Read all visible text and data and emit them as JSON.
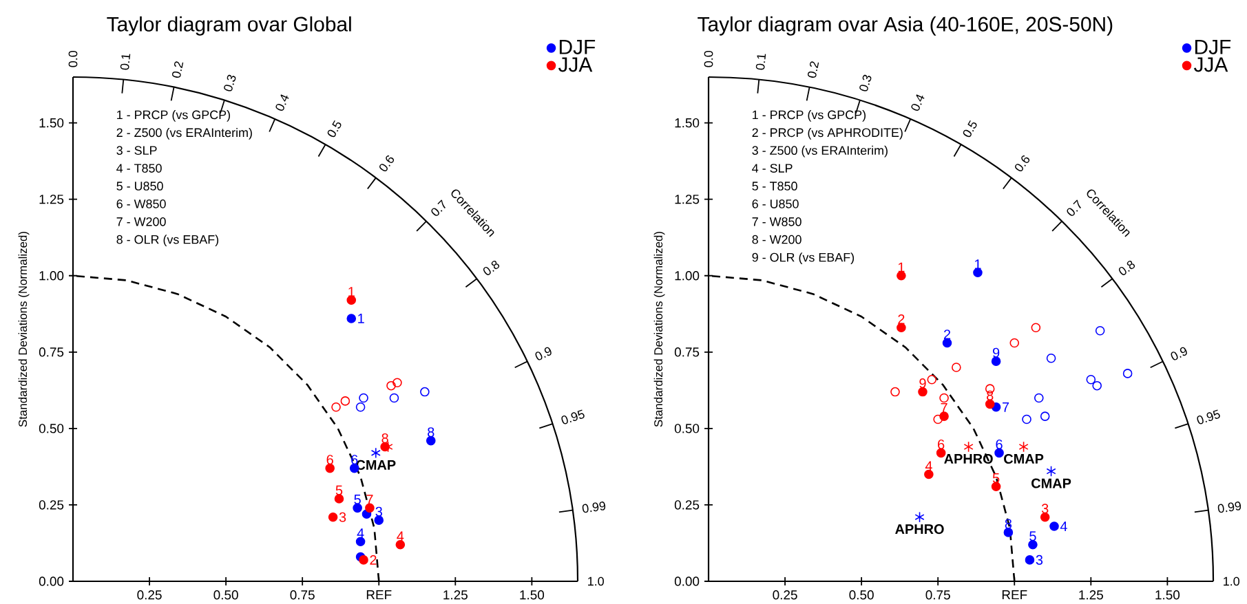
{
  "chart_data": [
    {
      "type": "scatter",
      "title": "Taylor diagram ovar Global",
      "ylabel": "Standardized Deviations (Normalized)",
      "x2label": "Correlation",
      "xlim": [
        0,
        1.65
      ],
      "ylim": [
        0,
        1.65
      ],
      "xticks": [
        0.25,
        {
          "value": 0.5,
          "label": "0.50"
        },
        0.75,
        {
          "value": 1,
          "label": "REF"
        },
        1.25,
        {
          "value": 1.5,
          "label": "1.50"
        }
      ],
      "yticks": [
        {
          "value": 0,
          "label": "0.00"
        },
        0.25,
        {
          "value": 0.5,
          "label": "0.50"
        },
        0.75,
        {
          "value": 1,
          "label": "1.00"
        },
        1.25,
        {
          "value": 1.5,
          "label": "1.50"
        }
      ],
      "legend": "top right",
      "series": [
        {
          "type": "line",
          "color": "#000000",
          "line_style": "dashed",
          "marker": "none",
          "x": [
            1,
            0.985,
            0.94,
            0.866,
            0.766,
            0.643,
            0.5,
            0.342,
            0.174,
            0
          ],
          "values": [
            0,
            0.174,
            0.342,
            0.5,
            0.643,
            0.766,
            0.866,
            0.94,
            0.985,
            1
          ]
        },
        {
          "name": "DJF",
          "color": "#0000ff",
          "marker": "circle",
          "x": [
            0.91,
            0.94,
            1.0,
            0.94,
            0.93,
            0.92,
            0.96,
            1.17
          ],
          "values": [
            0.86,
            0.08,
            0.2,
            0.13,
            0.24,
            0.37,
            0.22,
            0.46
          ]
        },
        {
          "name": "JJA",
          "color": "#ff0000",
          "marker": "circle",
          "x": [
            0.91,
            0.95,
            0.85,
            1.07,
            0.87,
            0.84,
            0.97,
            1.02
          ],
          "values": [
            0.92,
            0.07,
            0.21,
            0.12,
            0.27,
            0.37,
            0.24,
            0.44
          ]
        },
        {
          "color": "#0000ff",
          "marker": "circle",
          "x": [
            0.95,
            0.94,
            1.05,
            1.15
          ],
          "values": [
            0.6,
            0.57,
            0.6,
            0.62
          ]
        },
        {
          "color": "#ff0000",
          "marker": "circle",
          "x": [
            0.86,
            0.89,
            1.04,
            1.06
          ],
          "values": [
            0.57,
            0.59,
            0.64,
            0.65
          ]
        },
        {
          "color": "#0000ff",
          "marker": "cross",
          "x": [
            0.99
          ],
          "values": [
            0.42
          ]
        },
        {
          "color": "#ff0000",
          "marker": "cross",
          "x": [
            1.03
          ],
          "values": [
            0.44
          ]
        }
      ],
      "annotations": [
        "1 - PRCP (vs GPCP)",
        "2 - Z500 (vs ERAInterim)",
        "3 - SLP",
        "4 - T850",
        "5 - U850",
        "6 - W850",
        "7 - W200",
        "8 - OLR (vs EBAF)",
        "0.0",
        "0.1",
        "0.2",
        "0.3",
        "0.4",
        "0.5",
        "0.6",
        "0.7",
        "0.8",
        "0.9",
        "0.95",
        "0.99",
        "1.0",
        {
          "text": "CMAP",
          "x": 0.99,
          "y": 0.42
        },
        {
          "text": "1",
          "x": 0.91,
          "y": 0.86
        },
        {
          "text": "3",
          "x": 1.0,
          "y": 0.2
        },
        {
          "text": "4",
          "x": 0.94,
          "y": 0.13
        },
        {
          "text": "5",
          "x": 0.93,
          "y": 0.24
        },
        {
          "text": "6",
          "x": 0.92,
          "y": 0.37
        },
        {
          "text": "8",
          "x": 1.17,
          "y": 0.46
        },
        {
          "text": "1",
          "x": 0.91,
          "y": 0.92
        },
        {
          "text": "2",
          "x": 0.95,
          "y": 0.07
        },
        {
          "text": "3",
          "x": 0.85,
          "y": 0.21
        },
        {
          "text": "4",
          "x": 1.07,
          "y": 0.12
        },
        {
          "text": "5",
          "x": 0.87,
          "y": 0.27
        },
        {
          "text": "6",
          "x": 0.84,
          "y": 0.37
        },
        {
          "text": "7",
          "x": 0.97,
          "y": 0.24
        },
        {
          "text": "8",
          "x": 1.02,
          "y": 0.44
        }
      ]
    },
    {
      "type": "scatter",
      "title": "Taylor diagram ovar Asia (40-160E, 20S-50N)",
      "ylabel": "Standardized Deviations (Normalized)",
      "x2label": "Correlation",
      "xlim": [
        0,
        1.65
      ],
      "ylim": [
        0,
        1.65
      ],
      "xticks": [
        0.25,
        {
          "value": 0.5,
          "label": "0.50"
        },
        0.75,
        {
          "value": 1,
          "label": "REF"
        },
        1.25,
        {
          "value": 1.5,
          "label": "1.50"
        }
      ],
      "yticks": [
        {
          "value": 0,
          "label": "0.00"
        },
        0.25,
        {
          "value": 0.5,
          "label": "0.50"
        },
        0.75,
        {
          "value": 1,
          "label": "1.00"
        },
        1.25,
        {
          "value": 1.5,
          "label": "1.50"
        }
      ],
      "legend": "top right",
      "series": [
        {
          "type": "line",
          "color": "#000000",
          "line_style": "dashed",
          "marker": "none",
          "x": [
            1,
            0.985,
            0.94,
            0.866,
            0.766,
            0.643,
            0.5,
            0.342,
            0.174,
            0
          ],
          "values": [
            0,
            0.174,
            0.342,
            0.5,
            0.643,
            0.766,
            0.866,
            0.94,
            0.985,
            1
          ]
        },
        {
          "name": "DJF",
          "color": "#0000ff",
          "marker": "circle",
          "x": [
            0.88,
            0.78,
            1.05,
            1.13,
            1.06,
            0.95,
            0.94,
            0.98,
            0.94
          ],
          "values": [
            1.01,
            0.78,
            0.07,
            0.18,
            0.12,
            0.42,
            0.57,
            0.16,
            0.72
          ]
        },
        {
          "name": "JJA",
          "color": "#ff0000",
          "marker": "circle",
          "x": [
            0.63,
            0.63,
            1.1,
            0.72,
            0.94,
            0.76,
            0.77,
            0.92,
            0.7
          ],
          "values": [
            1.0,
            0.83,
            0.21,
            0.35,
            0.31,
            0.42,
            0.54,
            0.58,
            0.62
          ]
        },
        {
          "color": "#0000ff",
          "marker": "circle",
          "x": [
            1.28,
            1.12,
            1.08,
            1.04,
            1.1,
            1.25,
            1.27,
            1.37
          ],
          "values": [
            0.82,
            0.73,
            0.6,
            0.53,
            0.54,
            0.66,
            0.64,
            0.68
          ]
        },
        {
          "color": "#ff0000",
          "marker": "circle",
          "x": [
            0.61,
            0.73,
            0.81,
            0.77,
            0.75,
            0.92,
            1.0,
            1.07
          ],
          "values": [
            0.62,
            0.66,
            0.7,
            0.6,
            0.53,
            0.63,
            0.78,
            0.83
          ]
        },
        {
          "color": "#0000ff",
          "marker": "cross",
          "x": [
            1.12,
            0.69
          ],
          "values": [
            0.36,
            0.21
          ]
        },
        {
          "color": "#ff0000",
          "marker": "cross",
          "x": [
            0.85,
            1.03
          ],
          "values": [
            0.44,
            0.44
          ]
        }
      ],
      "annotations": [
        "1 - PRCP (vs GPCP)",
        "2 - PRCP (vs APHRODITE)",
        "3 - Z500 (vs ERAInterim)",
        "4 - SLP",
        "5 - T850",
        "6 - U850",
        "7 - W850",
        "8 - W200",
        "9 - OLR (vs EBAF)",
        "0.0",
        "0.1",
        "0.2",
        "0.3",
        "0.4",
        "0.5",
        "0.6",
        "0.7",
        "0.8",
        "0.9",
        "0.95",
        "0.99",
        "1.0",
        {
          "text": "APHRO",
          "x": 0.85,
          "y": 0.44
        },
        {
          "text": "CMAP",
          "x": 1.03,
          "y": 0.44
        },
        {
          "text": "CMAP",
          "x": 1.12,
          "y": 0.36
        },
        {
          "text": "APHRO",
          "x": 0.69,
          "y": 0.21
        },
        {
          "text": "1",
          "x": 0.88,
          "y": 1.01
        },
        {
          "text": "2",
          "x": 0.78,
          "y": 0.78
        },
        {
          "text": "3",
          "x": 1.05,
          "y": 0.07
        },
        {
          "text": "4",
          "x": 1.13,
          "y": 0.18
        },
        {
          "text": "5",
          "x": 1.06,
          "y": 0.12
        },
        {
          "text": "6",
          "x": 0.95,
          "y": 0.42
        },
        {
          "text": "7",
          "x": 0.94,
          "y": 0.57
        },
        {
          "text": "8",
          "x": 0.98,
          "y": 0.16
        },
        {
          "text": "9",
          "x": 0.94,
          "y": 0.72
        },
        {
          "text": "1",
          "x": 0.63,
          "y": 1.0
        },
        {
          "text": "2",
          "x": 0.63,
          "y": 0.83
        },
        {
          "text": "3",
          "x": 1.1,
          "y": 0.21
        },
        {
          "text": "4",
          "x": 0.72,
          "y": 0.35
        },
        {
          "text": "5",
          "x": 0.94,
          "y": 0.31
        },
        {
          "text": "6",
          "x": 0.76,
          "y": 0.42
        },
        {
          "text": "7",
          "x": 0.77,
          "y": 0.54
        },
        {
          "text": "8",
          "x": 0.92,
          "y": 0.58
        },
        {
          "text": "9",
          "x": 0.7,
          "y": 0.62
        }
      ]
    }
  ]
}
